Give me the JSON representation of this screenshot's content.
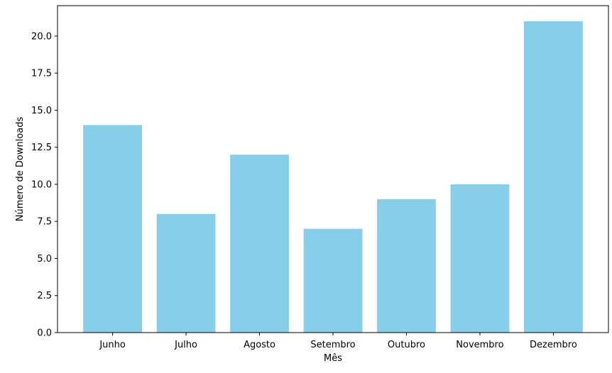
{
  "chart_data": {
    "type": "bar",
    "title": "",
    "xlabel": "Mês",
    "ylabel": "Número de Downloads",
    "categories": [
      "Junho",
      "Julho",
      "Agosto",
      "Setembro",
      "Outubro",
      "Novembro",
      "Dezembro"
    ],
    "values": [
      14,
      8,
      12,
      7,
      9,
      10,
      21
    ],
    "ylim": [
      0,
      22.05
    ],
    "yticks": [
      "0.0",
      "2.5",
      "5.0",
      "7.5",
      "10.0",
      "12.5",
      "15.0",
      "17.5",
      "20.0"
    ],
    "bar_color": "#87ceeb",
    "grid": false,
    "legend": "none"
  }
}
